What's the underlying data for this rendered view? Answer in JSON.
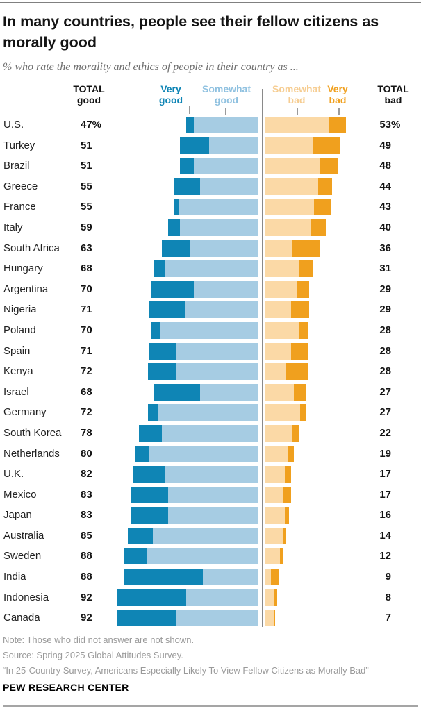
{
  "header": {
    "title_line1": "In many countries, people see their fellow citizens as",
    "title_line2": "morally good",
    "subtitle": "% who rate the morality and ethics of people in their country as ..."
  },
  "columns": {
    "total_good": {
      "line1": "TOTAL",
      "line2": "good"
    },
    "very_good": {
      "line1": "Very",
      "line2": "good"
    },
    "somewhat_good": {
      "line1": "Somewhat",
      "line2": "good"
    },
    "somewhat_bad": {
      "line1": "Somewhat",
      "line2": "bad"
    },
    "very_bad": {
      "line1": "Very",
      "line2": "bad"
    },
    "total_bad": {
      "line1": "TOTAL",
      "line2": "bad"
    }
  },
  "colors": {
    "very_good": "#0f85b5",
    "somewhat_good": "#a6cce3",
    "somewhat_bad": "#fbd9a6",
    "very_bad": "#f0a01e",
    "somewhat_good_label": "#8fc1e0",
    "somewhat_bad_label": "#f6cd92",
    "divider": "#8a8a8a",
    "tick": "#9b9b9b"
  },
  "chart_data": {
    "type": "bar",
    "variant": "horizontal-diverging-stacked",
    "title": "In many countries, people see their fellow citizens as morally good",
    "subtitle": "% who rate the morality and ethics of people in their country as ...",
    "legend_position": "top",
    "unit": "percent",
    "categories": [
      "U.S.",
      "Turkey",
      "Brazil",
      "Greece",
      "France",
      "Italy",
      "South Africa",
      "Hungary",
      "Argentina",
      "Nigeria",
      "Poland",
      "Spain",
      "Kenya",
      "Israel",
      "Germany",
      "South Korea",
      "Netherlands",
      "U.K.",
      "Mexico",
      "Japan",
      "Australia",
      "Sweden",
      "India",
      "Indonesia",
      "Canada"
    ],
    "series": [
      {
        "name": "Very good",
        "values": [
          5,
          19,
          9,
          17,
          3,
          8,
          18,
          7,
          28,
          23,
          6,
          17,
          18,
          30,
          7,
          15,
          9,
          21,
          24,
          24,
          16,
          15,
          52,
          45,
          38
        ]
      },
      {
        "name": "Somewhat good",
        "values": [
          42,
          32,
          42,
          38,
          52,
          51,
          45,
          61,
          42,
          48,
          64,
          54,
          54,
          38,
          65,
          63,
          71,
          61,
          59,
          59,
          69,
          73,
          36,
          47,
          54
        ]
      },
      {
        "name": "Somewhat bad",
        "values": [
          42,
          31,
          36,
          35,
          32,
          30,
          18,
          22,
          21,
          17,
          22,
          17,
          14,
          19,
          23,
          18,
          15,
          13,
          12,
          13,
          12,
          10,
          4,
          6,
          6
        ]
      },
      {
        "name": "Very bad",
        "values": [
          11,
          18,
          12,
          9,
          11,
          10,
          18,
          9,
          8,
          12,
          6,
          11,
          14,
          8,
          4,
          4,
          4,
          4,
          5,
          3,
          2,
          2,
          5,
          2,
          1
        ]
      }
    ],
    "totals": {
      "good": [
        47,
        51,
        51,
        55,
        55,
        59,
        63,
        68,
        70,
        71,
        70,
        71,
        72,
        68,
        72,
        78,
        80,
        82,
        83,
        83,
        85,
        88,
        88,
        92,
        92
      ],
      "bad": [
        53,
        49,
        48,
        44,
        43,
        40,
        36,
        31,
        29,
        29,
        28,
        28,
        28,
        27,
        27,
        22,
        19,
        17,
        17,
        16,
        14,
        12,
        9,
        8,
        7
      ]
    },
    "total_labels": {
      "good": [
        "47%",
        "51",
        "51",
        "55",
        "55",
        "59",
        "63",
        "68",
        "70",
        "71",
        "70",
        "71",
        "72",
        "68",
        "72",
        "78",
        "80",
        "82",
        "83",
        "83",
        "85",
        "88",
        "88",
        "92",
        "92"
      ],
      "bad": [
        "53%",
        "49",
        "48",
        "44",
        "43",
        "40",
        "36",
        "31",
        "29",
        "29",
        "28",
        "28",
        "28",
        "27",
        "27",
        "22",
        "19",
        "17",
        "17",
        "16",
        "14",
        "12",
        "9",
        "8",
        "7"
      ]
    }
  },
  "footer": {
    "note": "Note: Those who did not answer are not shown.",
    "source": "Source: Spring 2025 Global Attitudes Survey.",
    "report": "“In 25-Country Survey, Americans Especially Likely To View Fellow Citizens as Morally Bad”",
    "brand": "PEW RESEARCH CENTER"
  }
}
